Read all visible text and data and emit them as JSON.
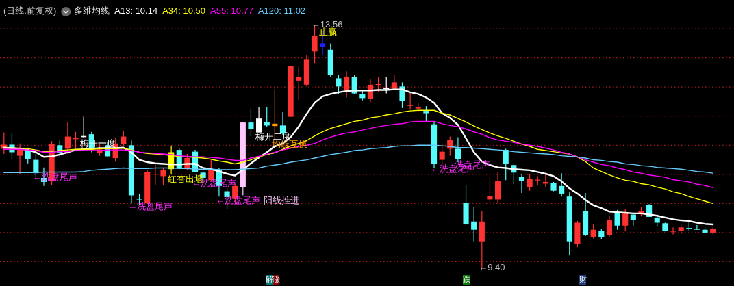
{
  "chart_data": {
    "type": "candlestick",
    "title": "(日线.前复权)",
    "subtitle": "多维均线",
    "grid": "y",
    "yticks": [
      {
        "value": 9.5,
        "label": null
      },
      {
        "value": 10.0,
        "label": null
      },
      {
        "value": 10.5,
        "label": null
      },
      {
        "value": 11.0,
        "label": null
      },
      {
        "value": 11.5,
        "label": null
      },
      {
        "value": 12.0,
        "label": null
      },
      {
        "value": 12.5,
        "label": null
      },
      {
        "value": 13.0,
        "label": null
      },
      {
        "value": 13.5,
        "label": null
      }
    ],
    "categories": [
      null,
      null,
      null,
      null,
      null,
      null,
      null,
      null,
      null,
      null,
      null,
      null,
      null,
      null,
      null,
      null,
      null,
      null,
      null,
      null,
      null,
      null,
      null,
      null,
      null,
      null,
      null,
      null,
      null,
      null,
      null,
      null,
      null,
      null,
      null,
      null,
      null,
      null,
      null,
      null,
      null,
      null,
      null,
      null,
      null,
      null,
      null,
      null,
      null,
      null,
      null,
      null,
      null,
      null,
      null,
      null,
      null,
      null,
      null,
      null,
      null,
      null,
      null,
      null,
      null,
      null,
      null,
      null,
      null,
      null,
      null,
      null,
      null,
      null,
      null,
      null,
      null,
      null,
      null,
      null,
      null,
      null,
      null,
      null,
      null,
      null,
      null,
      null,
      null,
      null
    ],
    "ohlc": [
      [
        11.44,
        11.72,
        11.35,
        11.51
      ],
      [
        11.51,
        11.72,
        11.26,
        11.38
      ],
      [
        11.32,
        11.53,
        11.0,
        11.43
      ],
      [
        11.41,
        11.43,
        11.19,
        11.26
      ],
      [
        11.25,
        11.35,
        10.97,
        11.02
      ],
      [
        10.94,
        11.12,
        10.8,
        10.87
      ],
      [
        10.88,
        11.57,
        10.82,
        11.52
      ],
      [
        11.5,
        11.58,
        11.31,
        11.37
      ],
      [
        11.44,
        11.9,
        11.35,
        11.65
      ],
      [
        11.62,
        11.73,
        11.43,
        11.62
      ],
      [
        11.64,
        11.99,
        11.63,
        11.66
      ],
      [
        11.69,
        11.73,
        11.38,
        11.44
      ],
      [
        11.37,
        11.52,
        11.32,
        11.43
      ],
      [
        11.5,
        11.56,
        11.31,
        11.31
      ],
      [
        11.28,
        11.62,
        11.22,
        11.53
      ],
      [
        11.52,
        11.75,
        11.5,
        11.65
      ],
      [
        11.5,
        11.58,
        10.5,
        10.64
      ],
      [
        10.57,
        10.67,
        10.47,
        10.57
      ],
      [
        10.5,
        11.08,
        10.49,
        11.04
      ],
      [
        11.01,
        11.17,
        10.82,
        11.01
      ],
      [
        10.97,
        11.11,
        10.82,
        11.08
      ],
      [
        11.09,
        11.48,
        11.01,
        11.38
      ],
      [
        11.42,
        11.46,
        11.09,
        11.11
      ],
      [
        11.1,
        11.35,
        11.08,
        11.28
      ],
      [
        11.39,
        11.42,
        11.04,
        11.04
      ],
      [
        11.03,
        11.05,
        10.85,
        10.94
      ],
      [
        10.9,
        11.25,
        10.89,
        11.09
      ],
      [
        11.08,
        11.11,
        10.62,
        10.8
      ],
      [
        10.71,
        10.76,
        10.41,
        10.61
      ],
      [
        10.58,
        10.84,
        10.53,
        10.8
      ],
      [
        10.78,
        11.89,
        10.64,
        11.89
      ],
      [
        11.89,
        12.13,
        11.66,
        11.78
      ],
      [
        11.72,
        12.16,
        11.72,
        11.96
      ],
      [
        11.9,
        12.16,
        11.82,
        11.84
      ],
      [
        11.83,
        12.46,
        11.6,
        11.87
      ],
      [
        11.84,
        12.07,
        11.68,
        11.7
      ],
      [
        11.99,
        12.86,
        11.99,
        12.86
      ],
      [
        12.61,
        12.85,
        12.28,
        12.67
      ],
      [
        12.54,
        13.05,
        12.51,
        12.98
      ],
      [
        13.11,
        13.56,
        12.91,
        13.38
      ],
      [
        13.25,
        13.46,
        13.05,
        13.19
      ],
      [
        13.14,
        13.25,
        12.68,
        12.71
      ],
      [
        12.65,
        12.71,
        12.38,
        12.51
      ],
      [
        12.44,
        12.77,
        12.32,
        12.68
      ],
      [
        12.67,
        12.71,
        12.38,
        12.39
      ],
      [
        12.38,
        12.45,
        12.27,
        12.31
      ],
      [
        12.3,
        12.64,
        12.24,
        12.54
      ],
      [
        12.55,
        12.67,
        12.41,
        12.55
      ],
      [
        12.48,
        12.67,
        12.39,
        12.48
      ],
      [
        12.47,
        12.71,
        12.46,
        12.58
      ],
      [
        12.51,
        12.58,
        12.14,
        12.26
      ],
      [
        12.19,
        12.4,
        12.11,
        12.19
      ],
      [
        12.13,
        12.22,
        12.07,
        12.16
      ],
      [
        12.09,
        12.17,
        11.91,
        12.05
      ],
      [
        11.86,
        11.9,
        11.11,
        11.18
      ],
      [
        11.25,
        11.52,
        11.02,
        11.39
      ],
      [
        11.44,
        11.65,
        11.32,
        11.59
      ],
      [
        11.44,
        11.64,
        11.21,
        11.26
      ],
      [
        10.51,
        10.81,
        10.14,
        10.14
      ],
      [
        10.19,
        10.44,
        9.85,
        10.05
      ],
      [
        9.85,
        10.37,
        9.4,
        10.19
      ],
      [
        10.57,
        10.94,
        10.5,
        10.63
      ],
      [
        10.57,
        11.04,
        10.5,
        10.88
      ],
      [
        11.42,
        11.44,
        10.9,
        11.18
      ],
      [
        11.16,
        11.17,
        10.83,
        11.03
      ],
      [
        10.96,
        11.0,
        10.68,
        10.89
      ],
      [
        10.78,
        11.0,
        10.72,
        10.92
      ],
      [
        10.91,
        10.97,
        10.82,
        10.91
      ],
      [
        10.84,
        11.0,
        10.78,
        10.87
      ],
      [
        10.85,
        10.87,
        10.71,
        10.72
      ],
      [
        10.8,
        11.02,
        10.62,
        10.67
      ],
      [
        10.62,
        10.69,
        9.61,
        9.85
      ],
      [
        9.8,
        10.2,
        9.75,
        10.17
      ],
      [
        10.37,
        10.68,
        9.94,
        9.96
      ],
      [
        9.93,
        10.14,
        9.9,
        10.05
      ],
      [
        10.03,
        10.07,
        9.89,
        9.92
      ],
      [
        9.96,
        10.29,
        9.92,
        10.21
      ],
      [
        10.33,
        10.39,
        10.05,
        10.12
      ],
      [
        10.12,
        10.41,
        10.02,
        10.33
      ],
      [
        10.31,
        10.31,
        10.12,
        10.22
      ],
      [
        10.33,
        10.44,
        10.28,
        10.37
      ],
      [
        10.48,
        10.49,
        10.27,
        10.27
      ],
      [
        10.26,
        10.27,
        10.1,
        10.17
      ],
      [
        10.16,
        10.17,
        10.02,
        10.03
      ],
      [
        10.03,
        10.09,
        9.97,
        10.03
      ],
      [
        10.03,
        10.14,
        9.97,
        10.09
      ],
      [
        10.08,
        10.19,
        10.03,
        10.08
      ],
      [
        10.07,
        10.13,
        10.05,
        10.05
      ],
      [
        10.05,
        10.09,
        9.99,
        10.0
      ],
      [
        10.0,
        10.09,
        9.97,
        10.06
      ]
    ],
    "colors": [
      "#ff3232",
      "#54fcfc",
      "#ff3232",
      "#54fcfc",
      "#54fcfc",
      "#54fcfc",
      "#ff3232",
      "#54fcfc",
      "#ff3232",
      "#ff3232",
      "#ffffff",
      "#54fcfc",
      "#ff3232",
      "#54fcfc",
      "#ff3232",
      "#ff3232",
      "#54fcfc",
      "#54fcfc",
      "#ff3232",
      "#ff3232",
      "#ff3232",
      "#ffff00",
      "#54fcfc",
      "#ff3232",
      "#54fcfc",
      "#54fcfc",
      "#ff3232",
      "#54fcfc",
      "#54fcfc",
      "#ff3232",
      "#ffc8ff",
      "#54fcfc",
      "#ffffff",
      "#54fcfc",
      "#ff9900",
      "#54fcfc",
      "#ff3232",
      "#ff3232",
      "#ff3232",
      "#ff3232",
      "#2020ff",
      "#54fcfc",
      "#54fcfc",
      "#ff3232",
      "#54fcfc",
      "#54fcfc",
      "#ff3232",
      "#ff3232",
      "#ffffff",
      "#ff3232",
      "#54fcfc",
      "#ff3232",
      "#ff3232",
      "#54fcfc",
      "#54fcfc",
      "#ff3232",
      "#ff3232",
      "#54fcfc",
      "#54fcfc",
      "#54fcfc",
      "#ff3232",
      "#ff3232",
      "#ff3232",
      "#54fcfc",
      "#54fcfc",
      "#54fcfc",
      "#ff3232",
      "#ff3232",
      "#ff3232",
      "#54fcfc",
      "#54fcfc",
      "#54fcfc",
      "#ff3232",
      "#54fcfc",
      "#ff3232",
      "#54fcfc",
      "#ff3232",
      "#54fcfc",
      "#ff3232",
      "#54fcfc",
      "#ff3232",
      "#54fcfc",
      "#54fcfc",
      "#54fcfc",
      "#ff3232",
      "#ff3232",
      "#54fcfc",
      "#54fcfc",
      "#54fcfc",
      "#ff3232"
    ],
    "series": [
      {
        "name": "A13: 10.14",
        "type": "line",
        "color": "#ffffff",
        "values": [
          11.46,
          11.45,
          11.44,
          11.42,
          11.38,
          11.3,
          11.31,
          11.34,
          11.38,
          11.42,
          11.43,
          11.44,
          11.45,
          11.45,
          11.45,
          11.46,
          11.38,
          11.25,
          11.21,
          11.19,
          11.18,
          11.17,
          11.17,
          11.18,
          11.18,
          11.11,
          11.09,
          11.05,
          11.01,
          10.98,
          11.08,
          11.19,
          11.29,
          11.38,
          11.48,
          11.53,
          11.64,
          11.82,
          12.04,
          12.23,
          12.34,
          12.38,
          12.41,
          12.43,
          12.44,
          12.44,
          12.44,
          12.45,
          12.45,
          12.46,
          12.46,
          12.41,
          12.38,
          12.32,
          12.23,
          12.05,
          11.97,
          11.85,
          11.62,
          11.38,
          11.22,
          11.16,
          11.12,
          11.11,
          11.09,
          11.08,
          11.07,
          11.04,
          11.01,
          10.97,
          10.88,
          10.76,
          10.67,
          10.56,
          10.47,
          10.42,
          10.36,
          10.35,
          10.34,
          10.33,
          10.33,
          10.31,
          10.29,
          10.26,
          10.23,
          10.21,
          10.2,
          10.17,
          10.15,
          10.14
        ]
      },
      {
        "name": "A34: 10.50",
        "type": "line",
        "color": "#ffff00",
        "values": [
          11.45,
          11.45,
          11.45,
          11.44,
          11.42,
          11.39,
          11.39,
          11.41,
          11.42,
          11.43,
          11.43,
          11.43,
          11.44,
          11.44,
          11.44,
          11.45,
          11.42,
          11.38,
          11.36,
          11.35,
          11.34,
          11.32,
          11.31,
          11.3,
          11.29,
          11.28,
          11.26,
          11.23,
          11.21,
          11.18,
          11.21,
          11.25,
          11.3,
          11.34,
          11.37,
          11.43,
          11.49,
          11.53,
          11.58,
          11.66,
          11.73,
          11.79,
          11.83,
          11.87,
          11.91,
          11.93,
          11.97,
          11.99,
          12.02,
          12.04,
          12.07,
          12.09,
          12.1,
          12.1,
          12.1,
          12.05,
          12.02,
          11.96,
          11.9,
          11.83,
          11.77,
          11.71,
          11.66,
          11.62,
          11.57,
          11.52,
          11.48,
          11.43,
          11.41,
          11.39,
          11.37,
          11.35,
          11.3,
          11.22,
          11.11,
          11.05,
          10.99,
          10.94,
          10.9,
          10.88,
          10.84,
          10.82,
          10.78,
          10.75,
          10.7,
          10.67,
          10.62,
          10.58,
          10.54,
          10.5
        ]
      },
      {
        "name": "A55: 10.77",
        "type": "line",
        "color": "#ff00ff",
        "values": [
          11.43,
          11.43,
          11.43,
          11.42,
          11.41,
          11.38,
          11.38,
          11.39,
          11.39,
          11.41,
          11.41,
          11.41,
          11.41,
          11.42,
          11.42,
          11.42,
          11.41,
          11.38,
          11.37,
          11.36,
          11.35,
          11.34,
          11.32,
          11.31,
          11.3,
          11.3,
          11.29,
          11.28,
          11.26,
          11.24,
          11.24,
          11.28,
          11.31,
          11.35,
          11.38,
          11.42,
          11.45,
          11.48,
          11.5,
          11.53,
          11.59,
          11.64,
          11.68,
          11.71,
          11.73,
          11.76,
          11.79,
          11.82,
          11.84,
          11.86,
          11.87,
          11.9,
          11.91,
          11.91,
          11.91,
          11.87,
          11.84,
          11.82,
          11.78,
          11.73,
          11.69,
          11.63,
          11.59,
          11.57,
          11.55,
          11.52,
          11.5,
          11.48,
          11.45,
          11.42,
          11.38,
          11.35,
          11.3,
          11.25,
          11.21,
          11.17,
          11.15,
          11.11,
          11.08,
          11.04,
          11.02,
          10.99,
          10.97,
          10.95,
          10.91,
          10.89,
          10.87,
          10.83,
          10.81,
          10.77
        ]
      },
      {
        "name": "A120: 11.02",
        "type": "line",
        "color": "#66ccff",
        "values": [
          11.03,
          11.03,
          11.03,
          11.03,
          11.03,
          11.04,
          11.04,
          11.04,
          11.04,
          11.04,
          11.05,
          11.07,
          11.08,
          11.09,
          11.1,
          11.11,
          11.1,
          11.1,
          11.1,
          11.11,
          11.11,
          11.11,
          11.1,
          11.1,
          11.09,
          11.09,
          11.09,
          11.08,
          11.08,
          11.08,
          11.09,
          11.1,
          11.11,
          11.14,
          11.16,
          11.18,
          11.21,
          11.23,
          11.25,
          11.28,
          11.31,
          11.34,
          11.36,
          11.38,
          11.41,
          11.42,
          11.44,
          11.45,
          11.46,
          11.48,
          11.49,
          11.49,
          11.5,
          11.5,
          11.5,
          11.49,
          11.48,
          11.46,
          11.46,
          11.45,
          11.44,
          11.43,
          11.42,
          11.41,
          11.39,
          11.38,
          11.37,
          11.36,
          11.35,
          11.34,
          11.32,
          11.31,
          11.3,
          11.28,
          11.25,
          11.24,
          11.22,
          11.21,
          11.18,
          11.17,
          11.15,
          11.14,
          11.12,
          11.11,
          11.1,
          11.09,
          11.07,
          11.05,
          11.04,
          11.02
        ]
      }
    ],
    "annotations": [
      "梅开一度",
      "←洗盘尾声",
      "←洗盘尾声",
      "红杏出墙",
      "←洗盘尾声",
      "←洗盘尾声",
      "梅开二度",
      "均线互换",
      "止赢",
      "←13.56",
      "←洗盘尾声",
      "洗盘尾声",
      "←9.40",
      "阳线推进",
      "解",
      "涨",
      "跌",
      "财"
    ]
  }
}
